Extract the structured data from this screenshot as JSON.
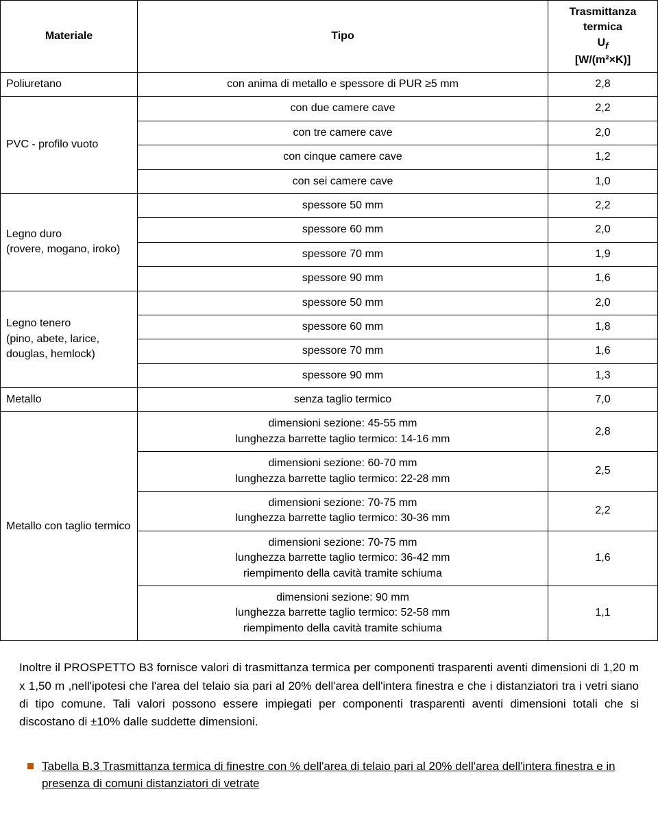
{
  "table": {
    "headers": {
      "col1": "Materiale",
      "col2": "Tipo",
      "col3_line1": "Trasmittanza termica",
      "col3_line2": "U",
      "col3_sub": "f",
      "col3_line3": "[W/(m²×K)]"
    },
    "rows": {
      "poliuretano": {
        "mat": "Poliuretano",
        "tipo": "con anima di metallo e spessore di PUR ≥5 mm",
        "val": "2,8"
      },
      "pvc_label": "PVC - profilo vuoto",
      "pvc": [
        {
          "tipo": "con due camere cave",
          "val": "2,2"
        },
        {
          "tipo": "con tre camere cave",
          "val": "2,0"
        },
        {
          "tipo": "con cinque camere cave",
          "val": "1,2"
        },
        {
          "tipo": "con sei camere cave",
          "val": "1,0"
        }
      ],
      "legno_duro_l1": "Legno duro",
      "legno_duro_l2": "(rovere, mogano, iroko)",
      "legno_duro": [
        {
          "tipo": "spessore 50 mm",
          "val": "2,2"
        },
        {
          "tipo": "spessore 60 mm",
          "val": "2,0"
        },
        {
          "tipo": "spessore 70 mm",
          "val": "1,9"
        },
        {
          "tipo": "spessore 90 mm",
          "val": "1,6"
        }
      ],
      "legno_tenero_l1": "Legno tenero",
      "legno_tenero_l2": "(pino, abete, larice,",
      "legno_tenero_l3": "douglas, hemlock)",
      "legno_tenero": [
        {
          "tipo": "spessore 50 mm",
          "val": "2,0"
        },
        {
          "tipo": "spessore 60 mm",
          "val": "1,8"
        },
        {
          "tipo": "spessore 70 mm",
          "val": "1,6"
        },
        {
          "tipo": "spessore 90 mm",
          "val": "1,3"
        }
      ],
      "metallo": {
        "mat": "Metallo",
        "tipo": "senza taglio termico",
        "val": "7,0"
      },
      "metallo_tt_label": "Metallo con taglio termico",
      "metallo_tt": [
        {
          "t1": "dimensioni sezione: 45-55 mm",
          "t2": "lunghezza barrette taglio termico: 14-16 mm",
          "val": "2,8"
        },
        {
          "t1": "dimensioni sezione: 60-70 mm",
          "t2": "lunghezza barrette taglio termico: 22-28 mm",
          "val": "2,5"
        },
        {
          "t1": "dimensioni sezione: 70-75 mm",
          "t2": "lunghezza barrette taglio termico: 30-36 mm",
          "val": "2,2"
        },
        {
          "t1": "dimensioni sezione: 70-75 mm",
          "t2": "lunghezza barrette taglio termico: 36-42 mm",
          "t3": "riempimento della cavità tramite schiuma",
          "val": "1,6"
        },
        {
          "t1": "dimensioni sezione: 90 mm",
          "t2": "lunghezza barrette taglio termico: 52-58 mm",
          "t3": "riempimento della cavità tramite schiuma",
          "val": "1,1"
        }
      ]
    }
  },
  "footer": {
    "p1a": "Inoltre il PROSPETTO B3 fornisce valori di trasmittanza termica per componenti trasparenti aventi dimensioni di 1,20 m x 1,50 m ,nell'ipotesi che l'area del telaio sia pari al 20% dell'area dell'intera finestra e che i distanziatori tra i vetri siano di tipo comune. Tali valori possono essere impiegati per componenti trasparenti aventi dimensioni totali che si discostano di ",
    "p1b": "10% dalle suddette dimensioni.",
    "link": "Tabella B.3 Trasmittanza termica di finestre con % dell'area di telaio pari al 20% dell'area dell'intera finestra e in presenza di comuni distanziatori di vetrate"
  }
}
